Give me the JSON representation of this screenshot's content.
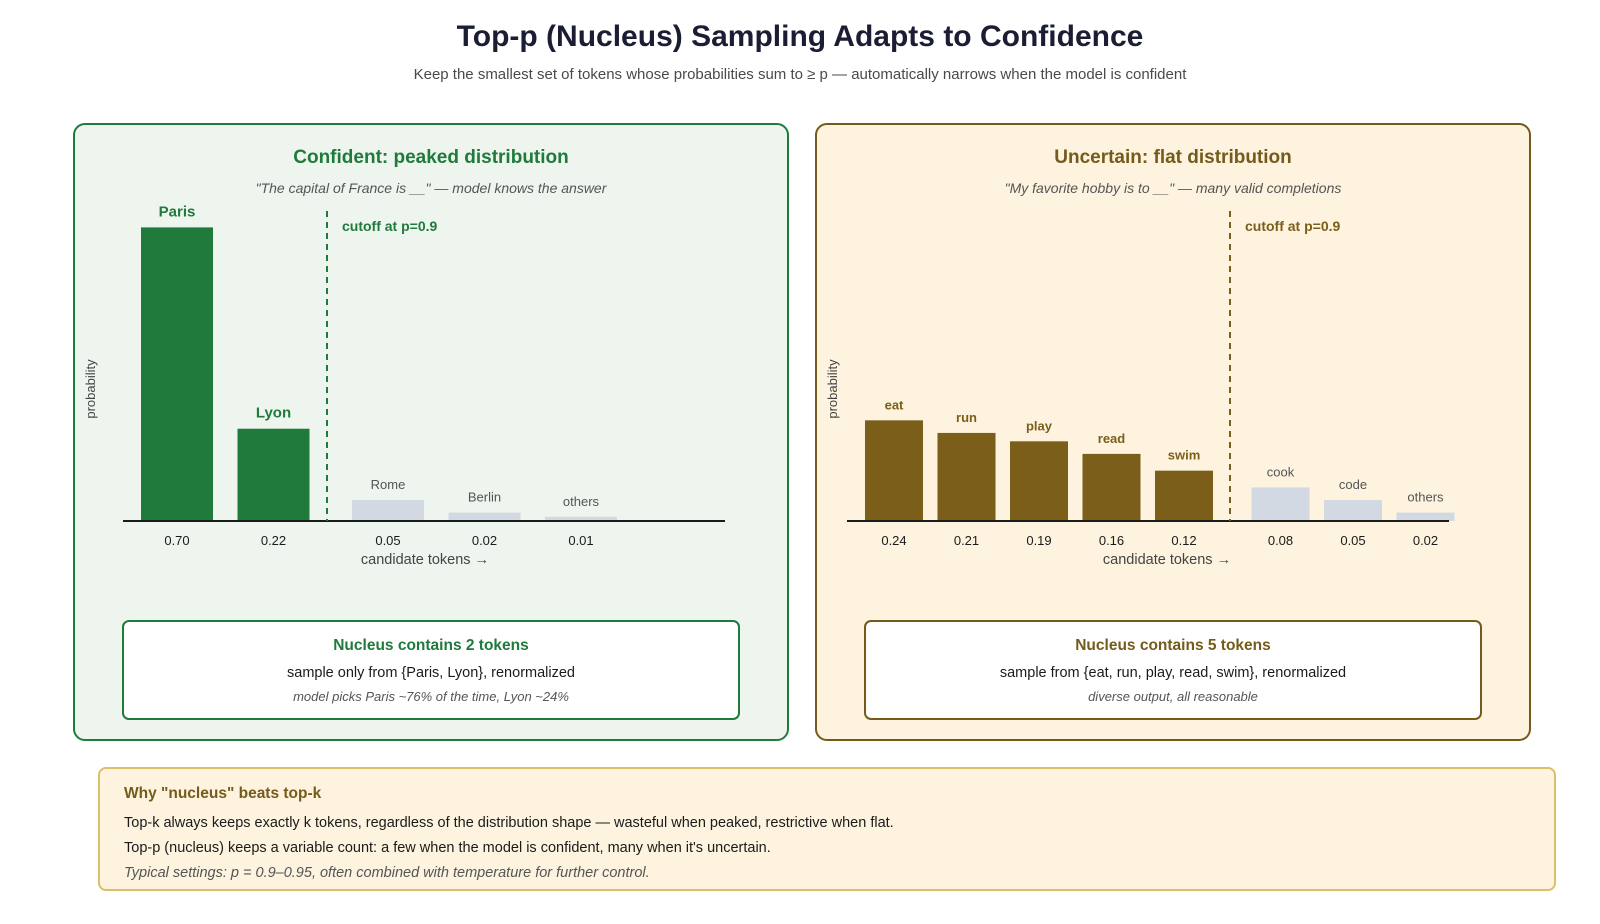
{
  "title": "Top-p (Nucleus) Sampling Adapts to Confidence",
  "subtitle": "Keep the smallest set of tokens whose probabilities sum to ≥ p — automatically narrows when the model is confident",
  "panels": [
    {
      "title": "Confident: peaked distribution",
      "prompt": "\"The capital of France is __\" — model knows the answer",
      "nucleus_title": "Nucleus contains 2 tokens",
      "nucleus_line": "sample only from {Paris, Lyon}, renormalized",
      "nucleus_note": "model picks Paris ~76% of the time, Lyon ~24%"
    },
    {
      "title": "Uncertain: flat distribution",
      "prompt": "\"My favorite hobby is to __\" — many valid completions",
      "nucleus_title": "Nucleus contains 5 tokens",
      "nucleus_line": "sample from {eat, run, play, read, swim}, renormalized",
      "nucleus_note": "diverse output, all reasonable"
    }
  ],
  "chart_data": [
    {
      "type": "bar",
      "categories": [
        "Paris",
        "Lyon",
        "Rome",
        "Berlin",
        "others"
      ],
      "values": [
        0.7,
        0.22,
        0.05,
        0.02,
        0.01
      ],
      "value_labels": [
        "0.70",
        "0.22",
        "0.05",
        "0.02",
        "0.01"
      ],
      "in_nucleus": [
        true,
        true,
        false,
        false,
        false
      ],
      "cutoff_label": "cutoff at p=0.9",
      "xlabel": "candidate tokens →",
      "ylabel": "probability",
      "ylim": [
        0,
        0.72
      ],
      "colors": {
        "nucleus": "#1f7a3b",
        "excluded": "#d3d9e3",
        "excluded_text": "#555555"
      }
    },
    {
      "type": "bar",
      "categories": [
        "eat",
        "run",
        "play",
        "read",
        "swim",
        "cook",
        "code",
        "others"
      ],
      "values": [
        0.24,
        0.21,
        0.19,
        0.16,
        0.12,
        0.08,
        0.05,
        0.02
      ],
      "value_labels": [
        "0.24",
        "0.21",
        "0.19",
        "0.16",
        "0.12",
        "0.08",
        "0.05",
        "0.02"
      ],
      "in_nucleus": [
        true,
        true,
        true,
        true,
        true,
        false,
        false,
        false
      ],
      "cutoff_label": "cutoff at p=0.9",
      "xlabel": "candidate tokens →",
      "ylabel": "probability",
      "ylim": [
        0,
        0.72
      ],
      "colors": {
        "nucleus": "#7a5e1a",
        "excluded": "#d3d9e3",
        "excluded_text": "#555555"
      }
    }
  ],
  "why": {
    "title": "Why \"nucleus\" beats top-k",
    "line1": "Top-k always keeps exactly k tokens, regardless of the distribution shape — wasteful when peaked, restrictive when flat.",
    "line2": "Top-p (nucleus) keeps a variable count: a few when the model is confident, many when it's uncertain.",
    "note": "Typical settings: p = 0.9–0.95, often combined with temperature for further control."
  }
}
